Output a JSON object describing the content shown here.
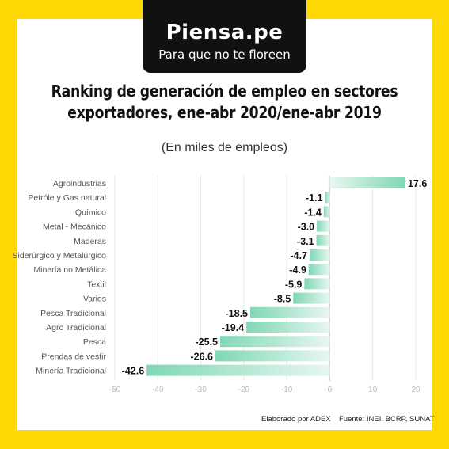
{
  "brand": {
    "name": "Piensa.pe",
    "tagline": "Para que no te floreen"
  },
  "title_line1": "Ranking de generación de empleo en sectores",
  "title_line2": "exportadores, ene-abr 2020/ene-abr 2019",
  "subtitle": "(En miles de empleos)",
  "footer": {
    "credit": "Elaborado por ADEX",
    "source": "Fuente: INEI, BCRP, SUNAT"
  },
  "colors": {
    "frame": "#FFD806",
    "bar_dark": "#7FD7B5",
    "bar_light": "#E4F6EE"
  },
  "chart_data": {
    "type": "bar",
    "orientation": "horizontal",
    "categories": [
      "Agroindustrias",
      "Petróle y Gas natural",
      "Químico",
      "Metal - Mecánico",
      "Maderas",
      "Siderúrgico y Metalúrgico",
      "Minería no Metálica",
      "Textil",
      "Varios",
      "Pesca Tradicional",
      "Agro Tradicional",
      "Pesca",
      "Prendas de vestir",
      "Minería Tradicional"
    ],
    "values": [
      17.6,
      -1.1,
      -1.4,
      -3.0,
      -3.1,
      -4.7,
      -4.9,
      -5.9,
      -8.5,
      -18.5,
      -19.4,
      -25.5,
      -26.6,
      -42.6
    ],
    "value_labels": [
      "17.6",
      "-1.1",
      "-1.4",
      "-3.0",
      "-3.1",
      "-4.7",
      "-4.9",
      "-5.9",
      "-8.5",
      "-18.5",
      "-19.4",
      "-25.5",
      "-26.6",
      "-42.6"
    ],
    "xlim": [
      -50,
      20
    ],
    "xticks": [
      -50,
      -40,
      -30,
      -20,
      -10,
      0,
      10,
      20
    ],
    "xtick_labels": [
      "-50",
      "-40",
      "-30",
      "-20",
      "-10",
      "0",
      "10",
      "20"
    ],
    "grid": true
  }
}
